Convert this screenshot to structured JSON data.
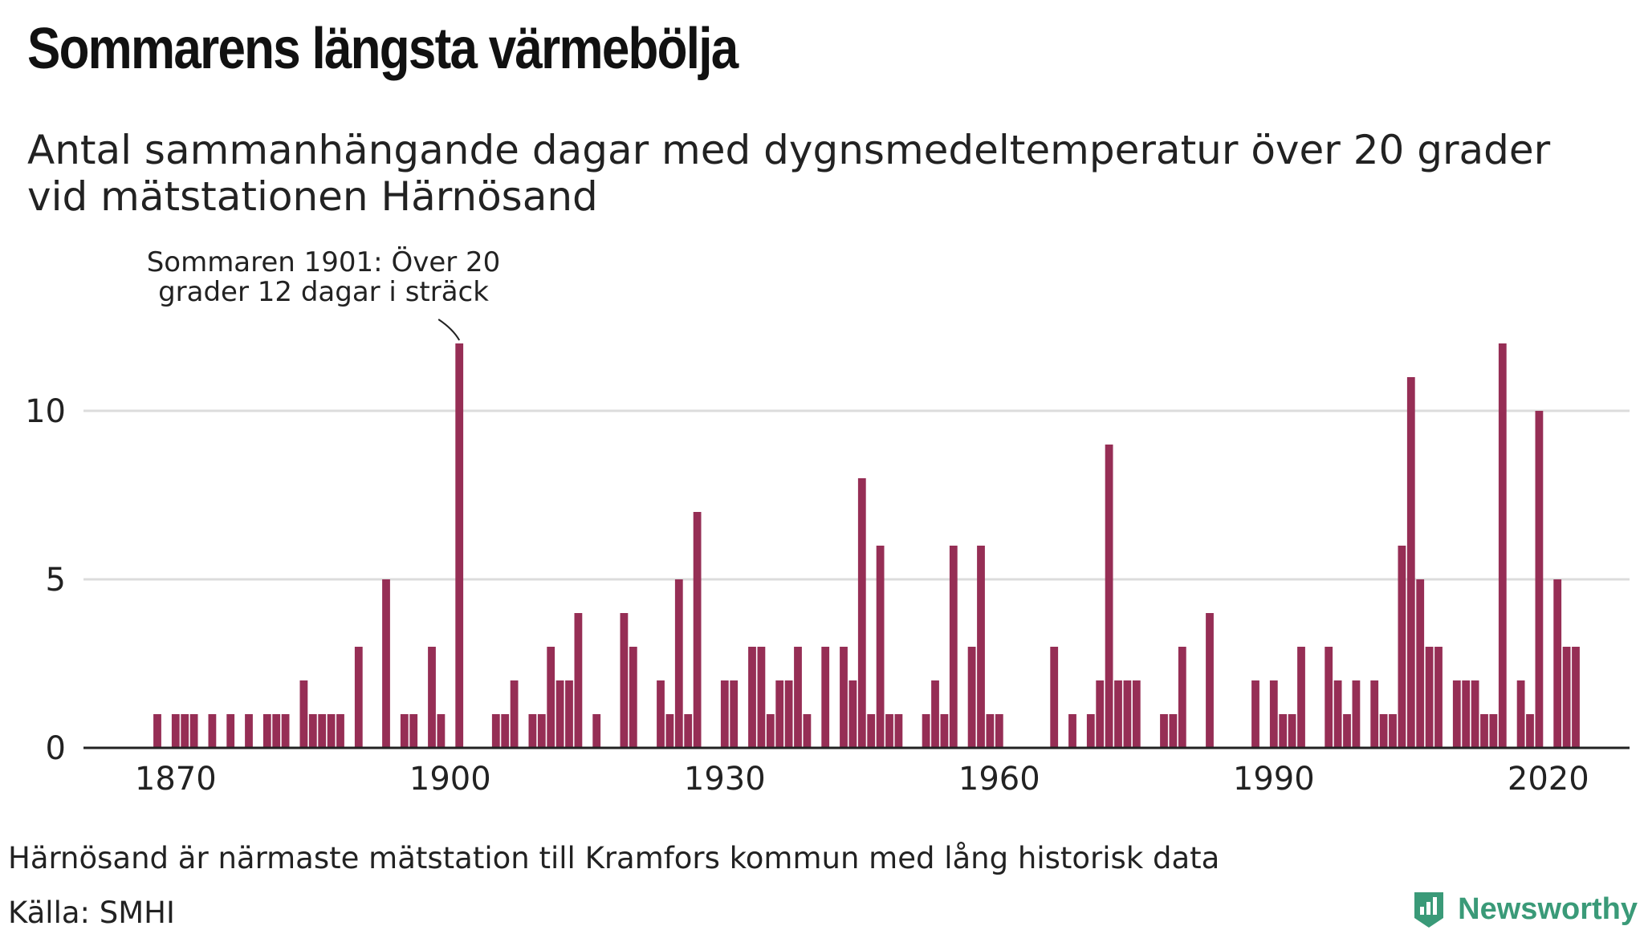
{
  "title": "Sommarens längsta värmebölja",
  "subtitle": "Antal sammanhängande dagar med dygnsmedeltemperatur över 20 grader vid mätstationen Härnösand",
  "footnote": "Härnösand är närmaste mätstation till Kramfors kommun med lång historisk data",
  "source": "Källa: SMHI",
  "brand": {
    "name": "Newsworthy",
    "color": "#3a9a78"
  },
  "chart_data": {
    "type": "bar",
    "bar_color": "#962e55",
    "grid": true,
    "xlim": [
      1860,
      2025
    ],
    "ylim": [
      0,
      12.5
    ],
    "x_ticks": [
      "1870",
      "1900",
      "1930",
      "1960",
      "1990",
      "2020"
    ],
    "y_ticks": [
      "0",
      "5",
      "10"
    ],
    "annotation": {
      "text_lines": [
        "Sommaren 1901: Över 20",
        "grader 12 dagar i sträck"
      ],
      "year": 1901,
      "value": 12
    },
    "x": [
      1868,
      1870,
      1871,
      1872,
      1874,
      1876,
      1878,
      1880,
      1881,
      1882,
      1884,
      1885,
      1886,
      1887,
      1888,
      1890,
      1893,
      1895,
      1896,
      1898,
      1899,
      1901,
      1905,
      1906,
      1907,
      1909,
      1910,
      1911,
      1912,
      1913,
      1914,
      1916,
      1919,
      1920,
      1923,
      1924,
      1925,
      1926,
      1927,
      1930,
      1931,
      1933,
      1934,
      1935,
      1936,
      1937,
      1938,
      1939,
      1941,
      1943,
      1944,
      1945,
      1946,
      1947,
      1948,
      1949,
      1952,
      1953,
      1954,
      1955,
      1957,
      1958,
      1959,
      1960,
      1966,
      1968,
      1970,
      1971,
      1972,
      1973,
      1974,
      1975,
      1978,
      1979,
      1980,
      1983,
      1988,
      1990,
      1991,
      1992,
      1993,
      1996,
      1997,
      1998,
      1999,
      2001,
      2002,
      2003,
      2004,
      2005,
      2006,
      2007,
      2008,
      2010,
      2011,
      2012,
      2013,
      2014,
      2015,
      2017,
      2018,
      2019,
      2021,
      2022,
      2023
    ],
    "values": [
      1,
      1,
      1,
      1,
      1,
      1,
      1,
      1,
      1,
      1,
      2,
      1,
      1,
      1,
      1,
      3,
      5,
      1,
      1,
      3,
      1,
      12,
      1,
      1,
      2,
      1,
      1,
      3,
      2,
      2,
      4,
      1,
      4,
      3,
      2,
      1,
      5,
      1,
      7,
      2,
      2,
      3,
      3,
      1,
      2,
      2,
      3,
      1,
      3,
      3,
      2,
      8,
      1,
      6,
      1,
      1,
      1,
      2,
      1,
      6,
      3,
      6,
      1,
      1,
      3,
      1,
      1,
      2,
      9,
      2,
      2,
      2,
      1,
      1,
      3,
      4,
      2,
      2,
      1,
      1,
      3,
      3,
      2,
      1,
      2,
      2,
      1,
      1,
      6,
      11,
      5,
      3,
      3,
      2,
      2,
      2,
      1,
      1,
      12,
      2,
      1,
      10,
      5,
      3,
      3
    ]
  }
}
